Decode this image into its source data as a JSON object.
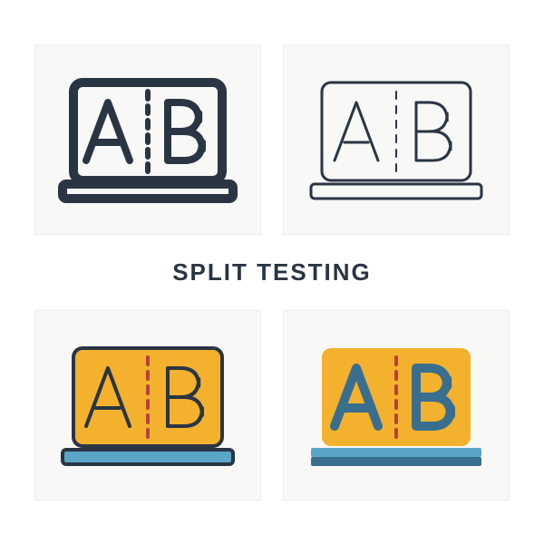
{
  "title": {
    "text": "SPLIT TESTING",
    "color": "#2a3544",
    "fontsize": 26
  },
  "card_bg": "#f8f8f6",
  "card_border": "#ededec",
  "letters": {
    "a": "A",
    "b": "B"
  },
  "icons": {
    "tl": {
      "type": "bold-outline",
      "stroke": "#2a3544",
      "stroke_width": 10,
      "screen_fill": "none",
      "base_fill": "none",
      "letter_stroke": "#2a3544",
      "letter_fill": "none",
      "letter_stroke_width": 8,
      "dash_color": "#2a3544",
      "dash_width": 6
    },
    "tr": {
      "type": "thin-outline",
      "stroke": "#2a3544",
      "stroke_width": 3,
      "screen_fill": "none",
      "base_fill": "none",
      "letter_stroke": "#2a3544",
      "letter_fill": "none",
      "letter_stroke_width": 3,
      "dash_color": "#2a3544",
      "dash_width": 2
    },
    "bl": {
      "type": "outline-colored",
      "stroke": "#2a3544",
      "stroke_width": 4,
      "screen_fill": "#f3b12d",
      "base_fill": "#5aa5c8",
      "letter_stroke": "#2a3544",
      "letter_fill": "none",
      "letter_stroke_width": 4,
      "dash_color": "#b8413a",
      "dash_width": 4
    },
    "br": {
      "type": "flat",
      "stroke": "none",
      "stroke_width": 0,
      "screen_fill": "#f3b12d",
      "base_fill": "#3a6e8f",
      "base_fill_light": "#5aa5c8",
      "letter_stroke": "none",
      "letter_fill": "#3a6e8f",
      "letter_stroke_width": 0,
      "dash_color": "#b8413a",
      "dash_width": 4
    }
  }
}
